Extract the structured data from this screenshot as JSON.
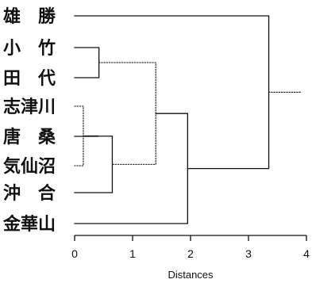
{
  "dendrogram": {
    "leaves": [
      "雄　勝",
      "小　竹",
      "田　代",
      "志津川",
      "唐　桑",
      "気仙沼",
      "沖　合",
      "金華山"
    ],
    "merges": [
      {
        "a": "L3",
        "b": "L5",
        "height": 0.15,
        "style": "dotted"
      },
      {
        "a": "L4",
        "b": "M0",
        "height": 0.4,
        "style": "solid"
      },
      {
        "a": "L1",
        "b": "L2",
        "height": 0.42,
        "style": "solid"
      },
      {
        "a": "M1",
        "b": "L6",
        "height": 0.65,
        "style": "solid"
      },
      {
        "a": "M2",
        "b": "M3",
        "height": 1.4,
        "style": "dotted"
      },
      {
        "a": "M4",
        "b": "L7",
        "height": 1.95,
        "style": "solid"
      },
      {
        "a": "L0",
        "b": "M5",
        "height": 3.35,
        "style": "solid"
      }
    ],
    "root_stub_end": 3.9
  },
  "axis": {
    "ticks": [
      "0",
      "1",
      "2",
      "3",
      "4"
    ],
    "tick_values": [
      0,
      1,
      2,
      3,
      4
    ],
    "range": [
      0,
      4
    ],
    "title": "Distances"
  }
}
